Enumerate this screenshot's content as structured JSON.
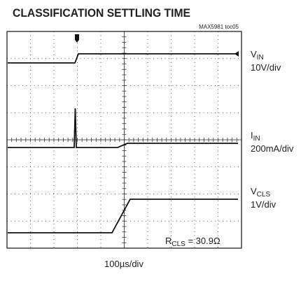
{
  "title": "CLASSIFICATION SETTLING TIME",
  "tag": "MAX5981 toc05",
  "channels": [
    {
      "name": "V",
      "subscript": "IN",
      "scale": "10V/div"
    },
    {
      "name": "I",
      "subscript": "IN",
      "scale": "200mA/div"
    },
    {
      "name": "V",
      "subscript": "CLS",
      "scale": "1V/div"
    }
  ],
  "annotation": {
    "name": "R",
    "subscript": "CLS",
    "text": " = 30.9Ω"
  },
  "timebase": "100µs/div"
}
